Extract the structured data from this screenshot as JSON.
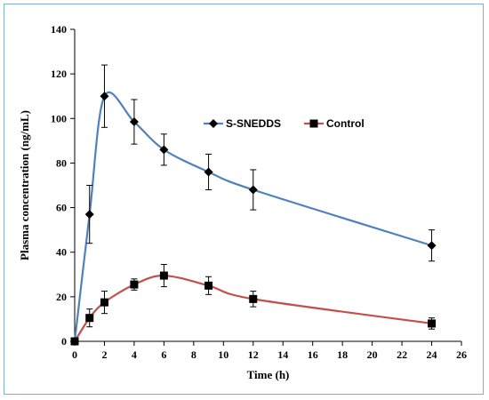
{
  "chart_data": {
    "type": "line",
    "xlabel": "Time (h)",
    "ylabel": "Plasma concentration (ng/mL)",
    "xlim": [
      0,
      26
    ],
    "ylim": [
      0,
      140
    ],
    "xticks": [
      0,
      2,
      4,
      6,
      8,
      10,
      12,
      14,
      16,
      18,
      20,
      22,
      24,
      26
    ],
    "yticks": [
      0,
      20,
      40,
      60,
      80,
      100,
      120,
      140
    ],
    "grid": false,
    "legend_position": "top-right",
    "series": [
      {
        "name": "S-SNEDDS",
        "color": "#4f81bd",
        "marker": "diamond",
        "x": [
          0,
          1,
          2,
          4,
          6,
          9,
          12,
          24
        ],
        "y": [
          0,
          57,
          110,
          98.5,
          86,
          76,
          68,
          43
        ],
        "error": [
          0,
          13,
          14,
          10,
          7,
          8,
          9,
          7
        ]
      },
      {
        "name": "Control",
        "color": "#c0504d",
        "marker": "square",
        "x": [
          0,
          1,
          2,
          4,
          6,
          9,
          12,
          24
        ],
        "y": [
          0,
          10.5,
          17.5,
          25.5,
          29.5,
          25,
          19,
          8
        ],
        "error": [
          0,
          4,
          5,
          2.5,
          5,
          4,
          3.5,
          2.5
        ]
      }
    ]
  }
}
